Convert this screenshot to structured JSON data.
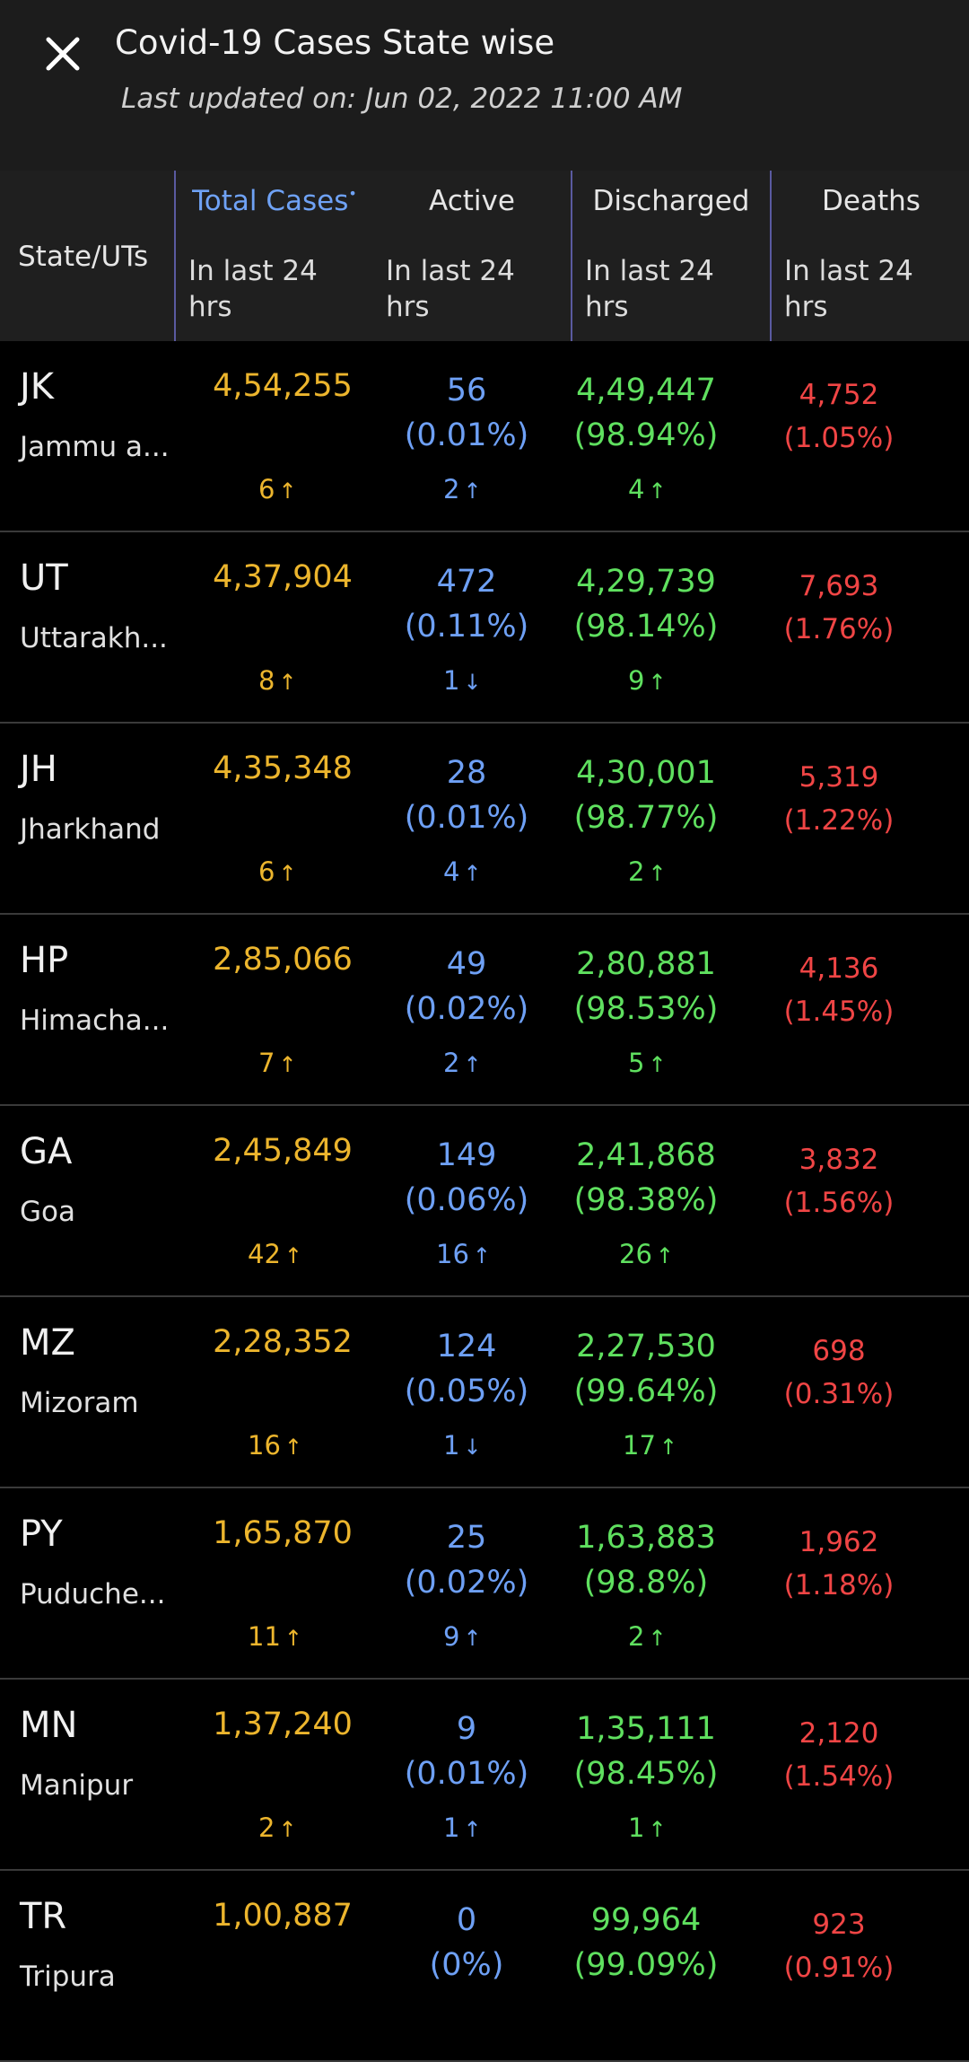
{
  "header": {
    "title": "Covid-19 Cases State wise",
    "subtitle": "Last updated on: Jun 02, 2022 11:00 AM"
  },
  "columns": {
    "state": "State/UTs",
    "total": "Total Cases",
    "active": "Active",
    "discharged": "Discharged",
    "deaths": "Deaths",
    "sub": "In last 24",
    "sub2": "hrs"
  },
  "rows": [
    {
      "code": "JK",
      "name": "Jammu a...",
      "total": "4,54,255",
      "total_delta": "6",
      "total_dir": "↑",
      "active": "56",
      "active_pct": "(0.01%)",
      "active_delta": "2",
      "active_dir": "↑",
      "discharged": "4,49,447",
      "discharged_pct": "(98.94%)",
      "discharged_delta": "4",
      "discharged_dir": "↑",
      "deaths": "4,752",
      "deaths_pct": "(1.05%)"
    },
    {
      "code": "UT",
      "name": "Uttarakh...",
      "total": "4,37,904",
      "total_delta": "8",
      "total_dir": "↑",
      "active": "472",
      "active_pct": "(0.11%)",
      "active_delta": "1",
      "active_dir": "↓",
      "discharged": "4,29,739",
      "discharged_pct": "(98.14%)",
      "discharged_delta": "9",
      "discharged_dir": "↑",
      "deaths": "7,693",
      "deaths_pct": "(1.76%)"
    },
    {
      "code": "JH",
      "name": "Jharkhand",
      "total": "4,35,348",
      "total_delta": "6",
      "total_dir": "↑",
      "active": "28",
      "active_pct": "(0.01%)",
      "active_delta": "4",
      "active_dir": "↑",
      "discharged": "4,30,001",
      "discharged_pct": "(98.77%)",
      "discharged_delta": "2",
      "discharged_dir": "↑",
      "deaths": "5,319",
      "deaths_pct": "(1.22%)"
    },
    {
      "code": "HP",
      "name": "Himacha...",
      "total": "2,85,066",
      "total_delta": "7",
      "total_dir": "↑",
      "active": "49",
      "active_pct": "(0.02%)",
      "active_delta": "2",
      "active_dir": "↑",
      "discharged": "2,80,881",
      "discharged_pct": "(98.53%)",
      "discharged_delta": "5",
      "discharged_dir": "↑",
      "deaths": "4,136",
      "deaths_pct": "(1.45%)"
    },
    {
      "code": "GA",
      "name": "Goa",
      "total": "2,45,849",
      "total_delta": "42",
      "total_dir": "↑",
      "active": "149",
      "active_pct": "(0.06%)",
      "active_delta": "16",
      "active_dir": "↑",
      "discharged": "2,41,868",
      "discharged_pct": "(98.38%)",
      "discharged_delta": "26",
      "discharged_dir": "↑",
      "deaths": "3,832",
      "deaths_pct": "(1.56%)"
    },
    {
      "code": "MZ",
      "name": "Mizoram",
      "total": "2,28,352",
      "total_delta": "16",
      "total_dir": "↑",
      "active": "124",
      "active_pct": "(0.05%)",
      "active_delta": "1",
      "active_dir": "↓",
      "discharged": "2,27,530",
      "discharged_pct": "(99.64%)",
      "discharged_delta": "17",
      "discharged_dir": "↑",
      "deaths": "698",
      "deaths_pct": "(0.31%)"
    },
    {
      "code": "PY",
      "name": "Puduche...",
      "total": "1,65,870",
      "total_delta": "11",
      "total_dir": "↑",
      "active": "25",
      "active_pct": "(0.02%)",
      "active_delta": "9",
      "active_dir": "↑",
      "discharged": "1,63,883",
      "discharged_pct": "(98.8%)",
      "discharged_delta": "2",
      "discharged_dir": "↑",
      "deaths": "1,962",
      "deaths_pct": "(1.18%)"
    },
    {
      "code": "MN",
      "name": "Manipur",
      "total": "1,37,240",
      "total_delta": "2",
      "total_dir": "↑",
      "active": "9",
      "active_pct": "(0.01%)",
      "active_delta": "1",
      "active_dir": "↑",
      "discharged": "1,35,111",
      "discharged_pct": "(98.45%)",
      "discharged_delta": "1",
      "discharged_dir": "↑",
      "deaths": "2,120",
      "deaths_pct": "(1.54%)"
    },
    {
      "code": "TR",
      "name": "Tripura",
      "total": "1,00,887",
      "total_delta": "",
      "total_dir": "",
      "active": "0",
      "active_pct": "(0%)",
      "active_delta": "",
      "active_dir": "",
      "discharged": "99,964",
      "discharged_pct": "(99.09%)",
      "discharged_delta": "",
      "discharged_dir": "",
      "deaths": "923",
      "deaths_pct": "(0.91%)"
    }
  ],
  "colors": {
    "total": "#ecb52d",
    "active": "#6ea0f5",
    "discharged": "#5fe05f",
    "deaths": "#f04545"
  }
}
